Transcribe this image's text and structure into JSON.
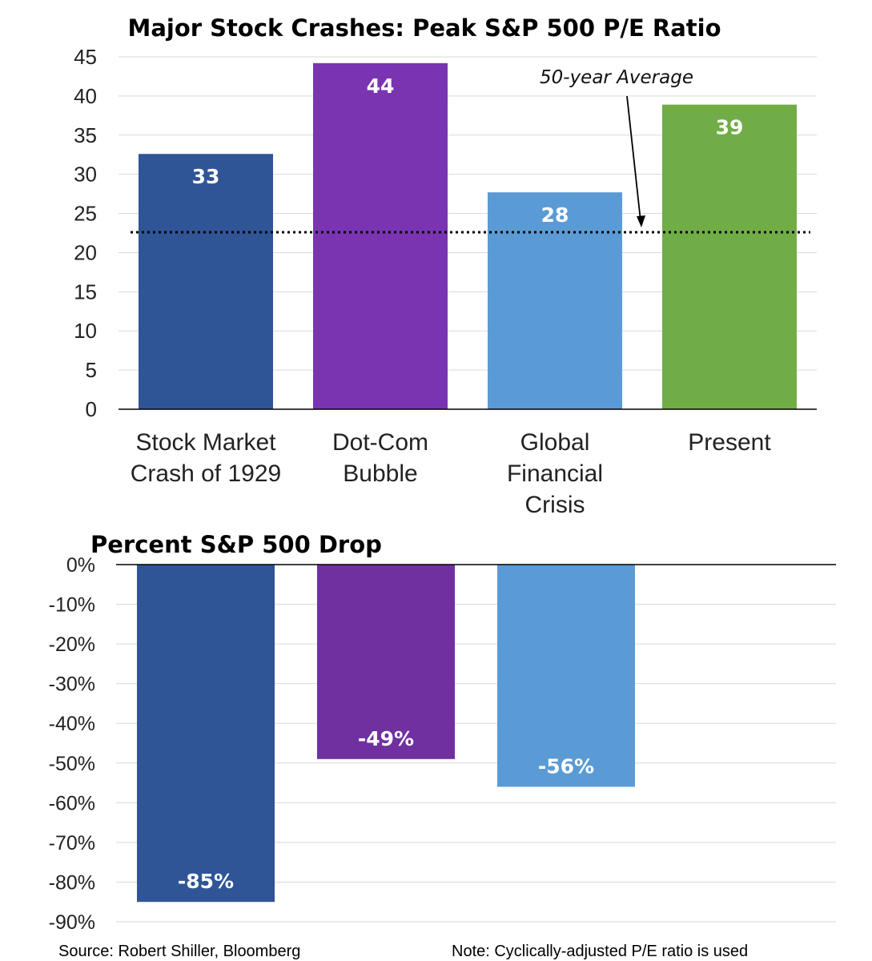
{
  "chart_data": [
    {
      "type": "bar",
      "title": "Major Stock Crashes: Peak S&P 500 P/E Ratio",
      "categories": [
        [
          "Stock Market",
          "Crash of 1929"
        ],
        [
          "Dot-Com",
          "Bubble"
        ],
        [
          "Global",
          "Financial",
          "Crisis"
        ],
        [
          "Present"
        ]
      ],
      "values": [
        32.6,
        44.2,
        27.7,
        38.9
      ],
      "data_labels": [
        "33",
        "44",
        "28",
        "39"
      ],
      "colors": [
        "#2F5597",
        "#7A34B2",
        "#5B9BD5",
        "#70AD47"
      ],
      "ylim": [
        0,
        45
      ],
      "yticks": [
        "0",
        "5",
        "10",
        "15",
        "20",
        "25",
        "30",
        "35",
        "40",
        "45"
      ],
      "ytick_values": [
        0,
        5,
        10,
        15,
        20,
        25,
        30,
        35,
        40,
        45
      ],
      "reference_line": {
        "value": 22.6,
        "label": "50-year Average",
        "style": "dotted"
      },
      "grid": true
    },
    {
      "type": "bar",
      "title": "Percent S&P 500 Drop",
      "categories": [
        "Stock Market Crash of 1929",
        "Dot-Com Bubble",
        "Global Financial Crisis"
      ],
      "values": [
        -85,
        -49,
        -56
      ],
      "data_labels": [
        "-85%",
        "-49%",
        "-56%"
      ],
      "colors": [
        "#2F5597",
        "#7030A0",
        "#5B9BD5"
      ],
      "ylim": [
        -90,
        0
      ],
      "yticks": [
        "0%",
        "-10%",
        "-20%",
        "-30%",
        "-40%",
        "-50%",
        "-60%",
        "-70%",
        "-80%",
        "-90%"
      ],
      "ytick_values": [
        0,
        -10,
        -20,
        -30,
        -40,
        -50,
        -60,
        -70,
        -80,
        -90
      ],
      "grid": true
    }
  ],
  "footer": {
    "source": "Source: Robert Shiller, Bloomberg",
    "note": "Note: Cyclically-adjusted P/E ratio is used"
  }
}
